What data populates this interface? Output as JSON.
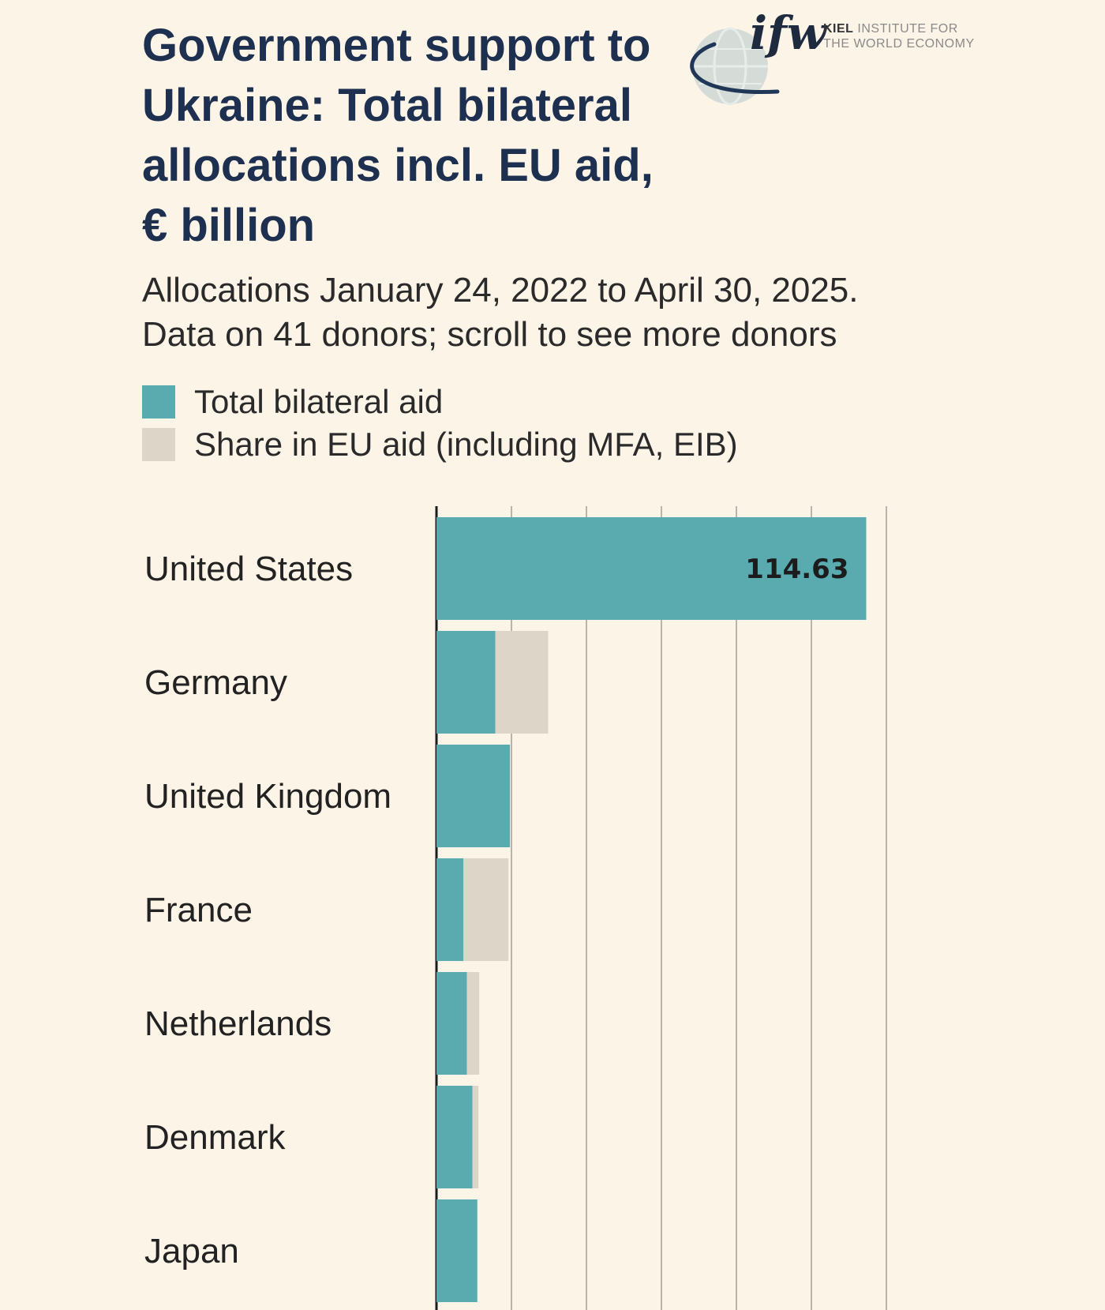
{
  "title": {
    "line1": "Government support to",
    "line2": "Ukraine: Total bilateral",
    "line3": "allocations incl. EU aid,",
    "line4": "€ billion"
  },
  "subtitle": {
    "line1": "Allocations January 24, 2022 to April 30, 2025.",
    "line2": "Data on 41 donors; scroll to see more donors"
  },
  "legend": [
    {
      "label": "Total bilateral aid",
      "color": "#5aabb0"
    },
    {
      "label": "Share in EU aid (including MFA, EIB)",
      "color": "#ddd5c7"
    }
  ],
  "logo": {
    "mark": "ifw",
    "kiel": "KIEL",
    "institute_for": "INSTITUTE FOR",
    "world_economy": "THE WORLD ECONOMY"
  },
  "colors": {
    "bilateral": "#5aabb0",
    "eu_share": "#ddd5c7",
    "grid": "#b8b3ab",
    "axis": "#1c1c1c"
  },
  "chart_data": {
    "type": "bar",
    "orientation": "horizontal",
    "stacked": true,
    "categories": [
      "United States",
      "Germany",
      "United Kingdom",
      "France",
      "Netherlands",
      "Denmark",
      "Japan"
    ],
    "series": [
      {
        "name": "Total bilateral aid",
        "values": [
          114.63,
          15.7,
          19.6,
          7.2,
          8.1,
          9.6,
          10.9
        ]
      },
      {
        "name": "Share in EU aid (including MFA, EIB)",
        "values": [
          0,
          14.1,
          0,
          12.0,
          3.3,
          1.6,
          0
        ]
      }
    ],
    "data_labels": [
      "114.63",
      "",
      "",
      "",
      "",
      "",
      ""
    ],
    "xlim": [
      0,
      120
    ],
    "x_grid_step": 20,
    "grid": true,
    "legend_position": "top-left"
  }
}
